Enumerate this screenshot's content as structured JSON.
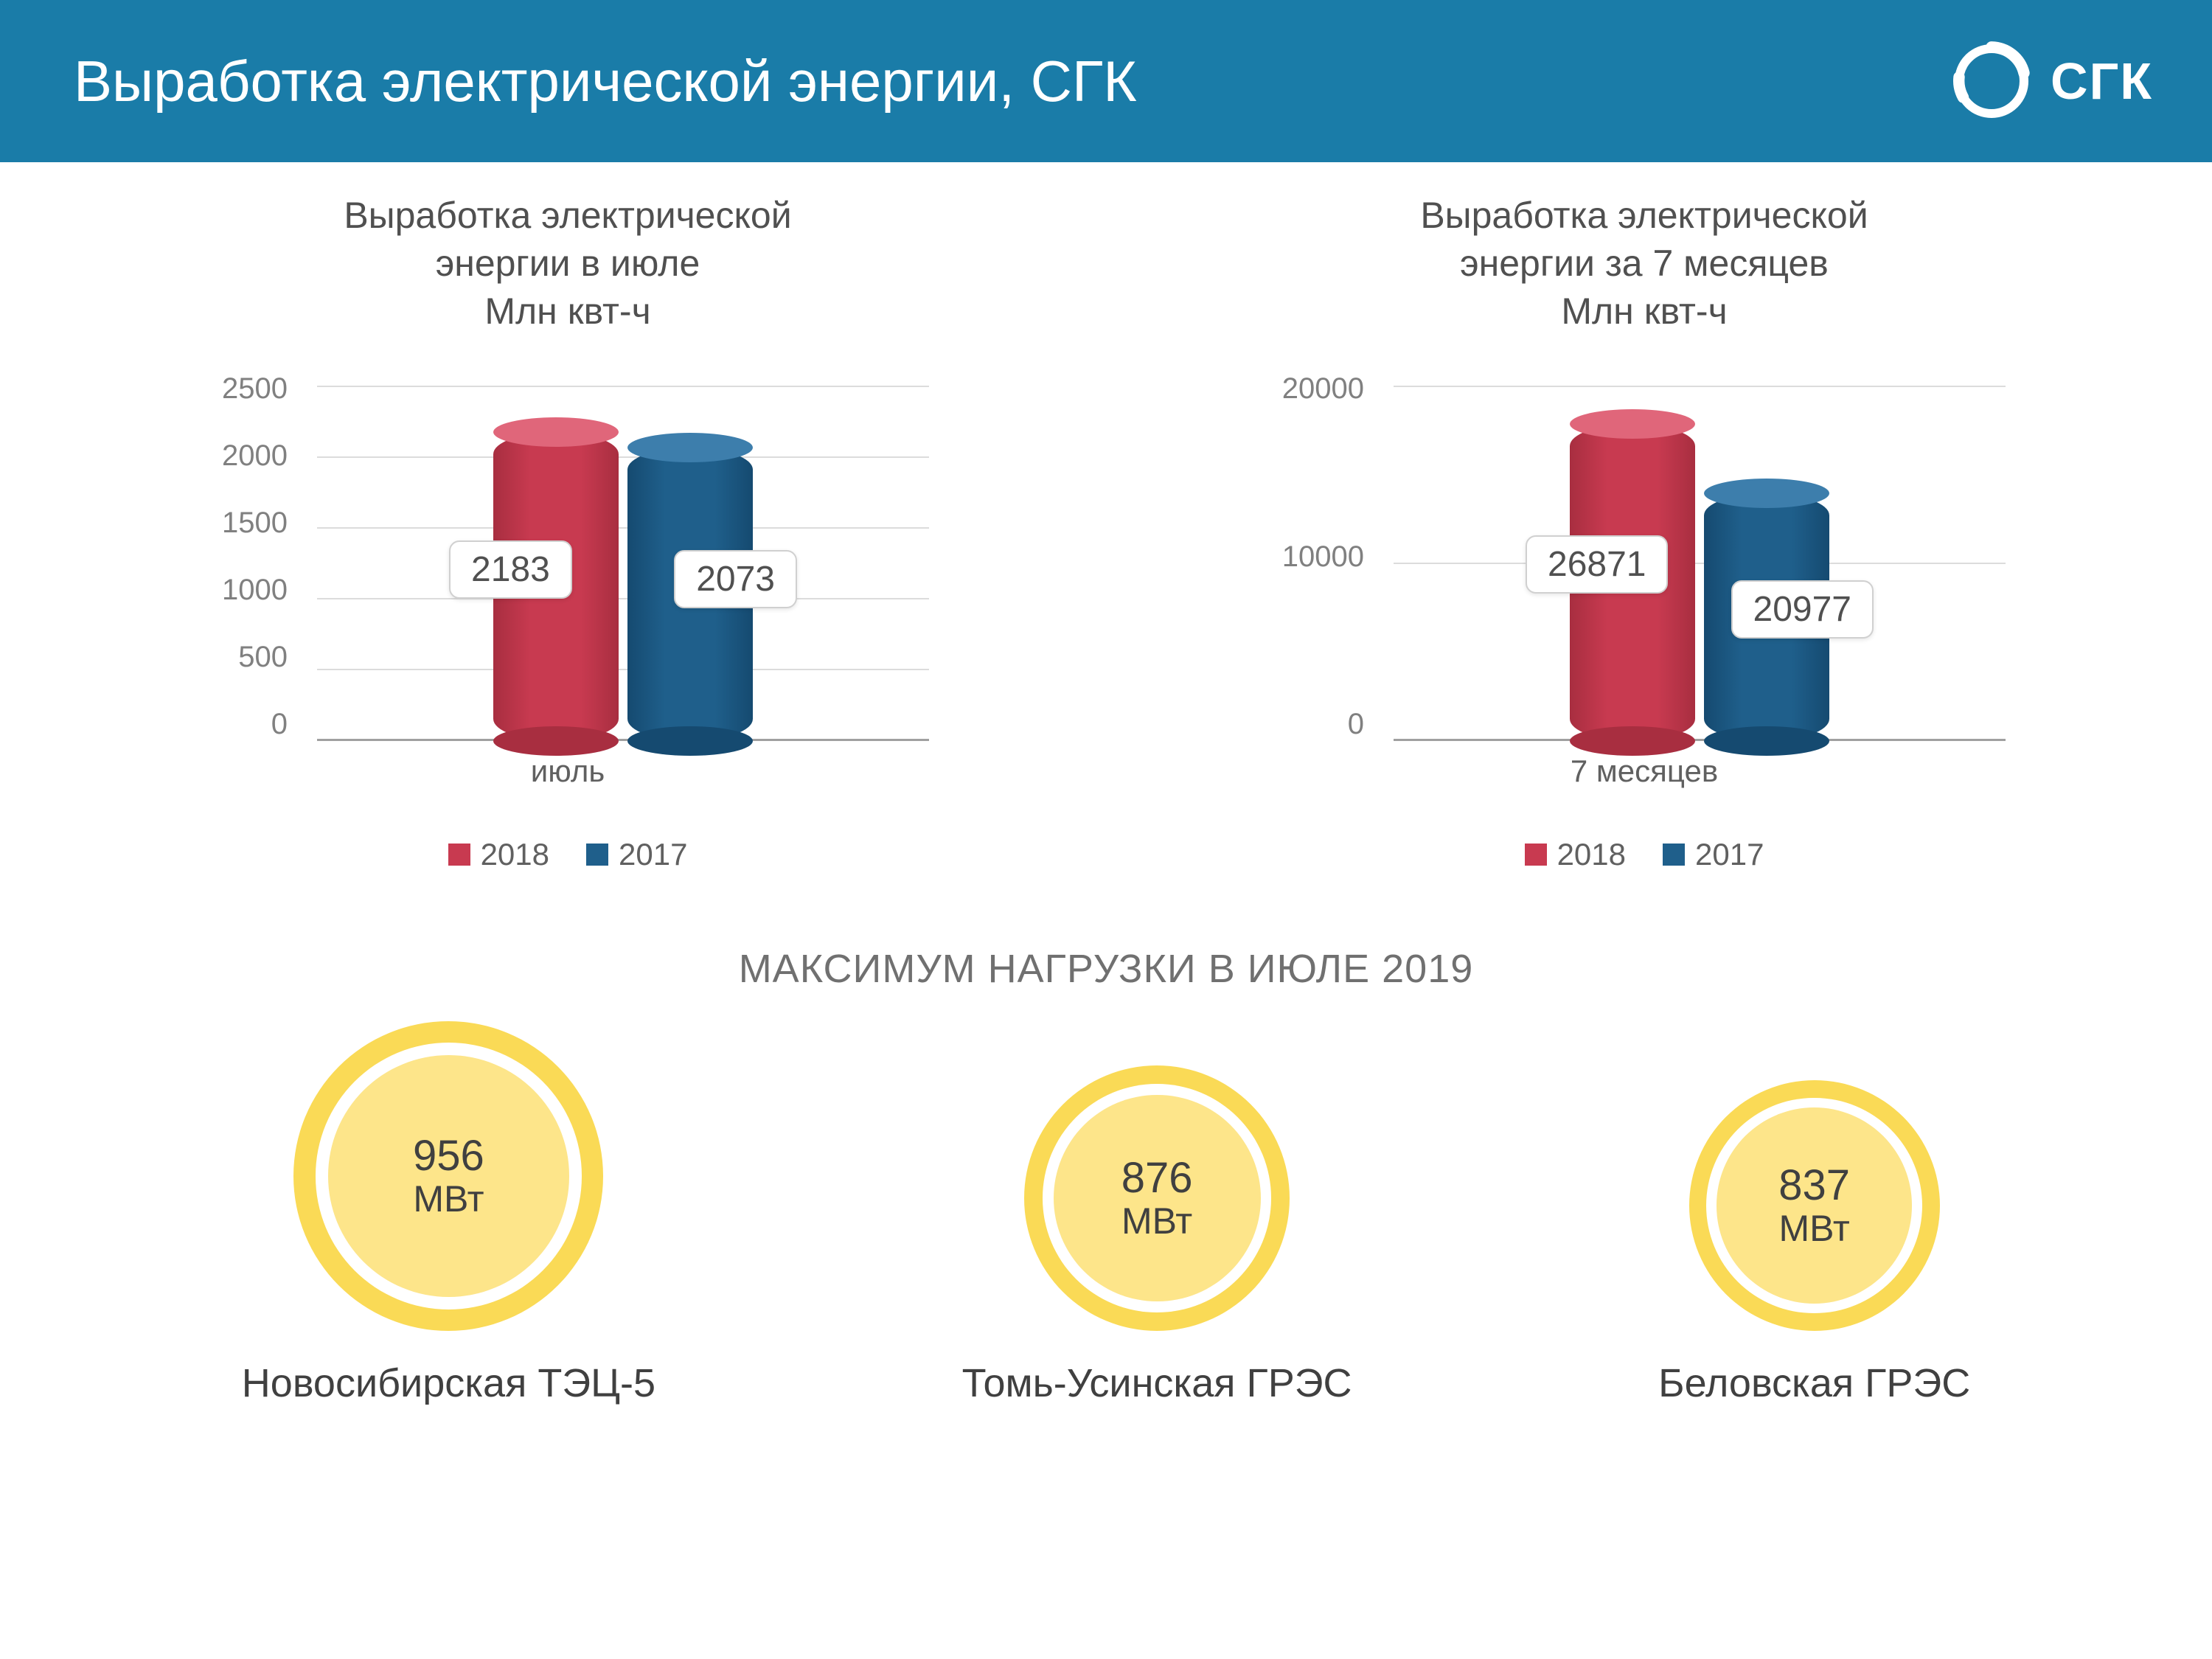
{
  "header": {
    "title": "Выработка электрической энергии, СГК",
    "logo_text": "СГК",
    "bg_color": "#1a7ca8"
  },
  "series_colors": {
    "2018": {
      "body": "#c83a50",
      "top": "#e0667a",
      "bottom": "#a82e40"
    },
    "2017": {
      "body": "#1f5f8b",
      "top": "#3d7eac",
      "bottom": "#154a70"
    }
  },
  "charts": [
    {
      "title_lines": [
        "Выработка электрической",
        "энергии в июле",
        "Млн квт-ч"
      ],
      "y_ticks": [
        "2500",
        "2000",
        "1500",
        "1000",
        "500",
        "0"
      ],
      "y_max": 2500,
      "x_label": "июль",
      "legend": [
        "2018",
        "2017"
      ],
      "bars": [
        {
          "series": "2018",
          "value": 2183,
          "label": "2183",
          "badge_side": "left"
        },
        {
          "series": "2017",
          "value": 2073,
          "label": "2073",
          "badge_side": "right"
        }
      ]
    },
    {
      "title_lines": [
        "Выработка электрической",
        "энергии за 7 месяцев",
        "Млн квт-ч"
      ],
      "y_ticks": [
        "20000",
        "10000",
        "0"
      ],
      "y_max": 30000,
      "x_label": "7 месяцев",
      "legend": [
        "2018",
        "2017"
      ],
      "bars": [
        {
          "series": "2018",
          "value": 26871,
          "label": "26871",
          "badge_side": "left"
        },
        {
          "series": "2017",
          "value": 20977,
          "label": "20977",
          "badge_side": "right"
        }
      ]
    }
  ],
  "max_load": {
    "title": "МАКСИМУМ НАГРУЗКИ В ИЮЛЕ 2019",
    "ring_color": "#fada56",
    "inner_color": "#fde58a",
    "unit": "МВт",
    "items": [
      {
        "value": "956",
        "label": "Новосибирская ТЭЦ-5",
        "size": 420
      },
      {
        "value": "876",
        "label": "Томь-Усинская ГРЭС",
        "size": 360
      },
      {
        "value": "837",
        "label": "Беловская ГРЭС",
        "size": 340
      }
    ]
  }
}
